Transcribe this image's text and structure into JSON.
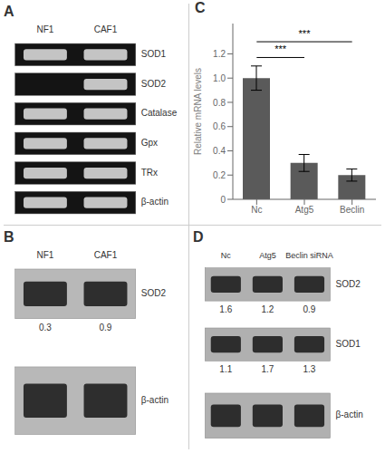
{
  "chart_data": [
    {
      "type": "gel",
      "title": "A",
      "categories": [
        "NF1",
        "CAF1"
      ],
      "color": "#141414",
      "rows": [
        {
          "name": "SOD1",
          "bands": [
            true,
            true
          ]
        },
        {
          "name": "SOD2",
          "bands": [
            false,
            true
          ]
        },
        {
          "name": "Catalase",
          "bands": [
            true,
            true
          ]
        },
        {
          "name": "Gpx",
          "bands": [
            true,
            true
          ]
        },
        {
          "name": "TRx",
          "bands": [
            true,
            true
          ]
        },
        {
          "name": "β-actin",
          "bands": [
            true,
            true
          ]
        }
      ]
    },
    {
      "type": "blot",
      "title": "B",
      "categories": [
        "NF1",
        "CAF1"
      ],
      "color": "#b8b8b8",
      "rows": [
        {
          "name": "SOD2",
          "values": [
            0.3,
            0.9
          ]
        },
        {
          "name": "β-actin"
        }
      ]
    },
    {
      "type": "bar",
      "title": "C",
      "categories": [
        "Nc",
        "Atg5",
        "Beclin"
      ],
      "values": [
        1.0,
        0.3,
        0.2
      ],
      "errors": [
        0.1,
        0.07,
        0.05
      ],
      "color": "#5a5a5a",
      "y_label": "Relative mRNA levels",
      "ylim": [
        0,
        1.45
      ],
      "yticks": [
        0,
        0.2,
        0.4,
        0.6,
        0.8,
        {
          "value": 1.0,
          "label": "1.0"
        },
        1.2
      ],
      "annotations": [
        {
          "text": "***",
          "from": "Nc",
          "to": "Atg5",
          "y": 1.17
        },
        {
          "text": "***",
          "from": "Nc",
          "to": "Beclin",
          "y": 1.3
        }
      ]
    },
    {
      "type": "blot",
      "title": "D",
      "categories": [
        "Nc",
        "Atg5",
        "Beclin siRNA"
      ],
      "color": "#b0b0b0",
      "rows": [
        {
          "name": "SOD2",
          "values": [
            1.6,
            1.2,
            0.9
          ]
        },
        {
          "name": "SOD1",
          "values": [
            1.1,
            1.7,
            1.3
          ]
        },
        {
          "name": "β-actin"
        }
      ]
    }
  ]
}
